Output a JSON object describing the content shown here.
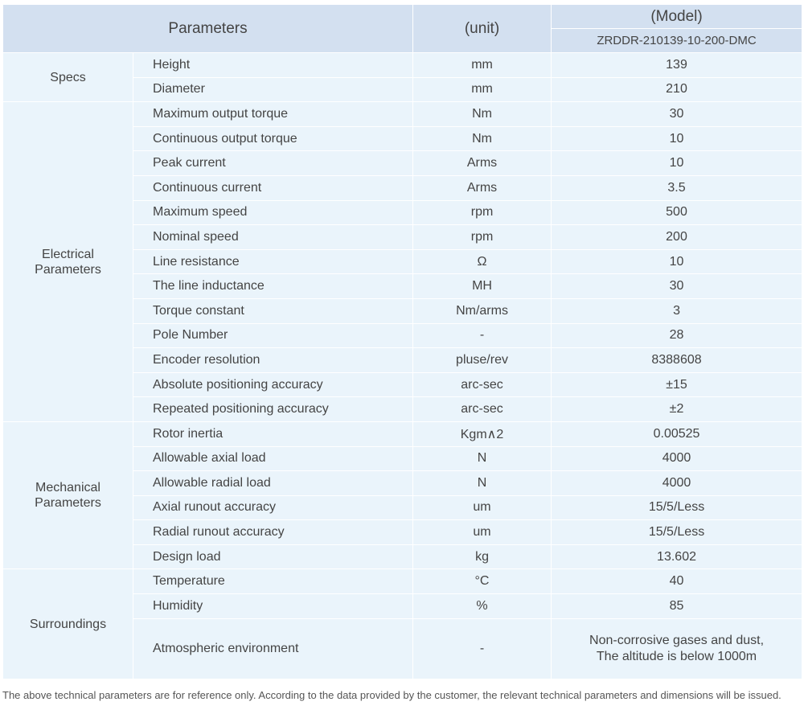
{
  "header": {
    "parameters": "Parameters",
    "unit": "(unit)",
    "model": "(Model)",
    "model_name": "ZRDDR-210139-10-200-DMC"
  },
  "groups": [
    {
      "name": "Specs",
      "rows": [
        [
          "Height",
          "mm",
          "139"
        ],
        [
          "Diameter",
          "mm",
          "210"
        ]
      ]
    },
    {
      "name": "Electrical Parameters",
      "rows": [
        [
          "Maximum output torque",
          "Nm",
          "30"
        ],
        [
          "Continuous output torque",
          "Nm",
          "10"
        ],
        [
          "Peak current",
          "Arms",
          "10"
        ],
        [
          "Continuous current",
          "Arms",
          "3.5"
        ],
        [
          "Maximum speed",
          "rpm",
          "500"
        ],
        [
          "Nominal speed",
          "rpm",
          "200"
        ],
        [
          "Line resistance",
          "Ω",
          "10"
        ],
        [
          "The line inductance",
          "MH",
          "30"
        ],
        [
          "Torque constant",
          "Nm/arms",
          "3"
        ],
        [
          "Pole Number",
          "-",
          "28"
        ],
        [
          "Encoder resolution",
          "pluse/rev",
          "8388608"
        ],
        [
          "Absolute positioning accuracy",
          "arc-sec",
          "±15"
        ],
        [
          "Repeated positioning accuracy",
          "arc-sec",
          "±2"
        ]
      ]
    },
    {
      "name": "Mechanical Parameters",
      "rows": [
        [
          "Rotor inertia",
          "Kgm∧2",
          "0.00525"
        ],
        [
          "Allowable axial load",
          "N",
          "4000"
        ],
        [
          "Allowable radial load",
          "N",
          "4000"
        ],
        [
          "Axial runout accuracy",
          "um",
          "15/5/Less"
        ],
        [
          "Radial runout accuracy",
          "um",
          "15/5/Less"
        ],
        [
          "Design load",
          "kg",
          "13.602"
        ]
      ]
    },
    {
      "name": "Surroundings",
      "rows": [
        [
          "Temperature",
          "°C",
          "40"
        ],
        [
          "Humidity",
          "%",
          "85"
        ],
        [
          "Atmospheric environment",
          "-",
          [
            "Non-corrosive gases and dust,",
            "The altitude is below 1000m"
          ]
        ]
      ]
    }
  ],
  "footnote": "The above technical parameters are for reference only. According to the data provided by the customer, the relevant technical parameters and dimensions will be issued."
}
